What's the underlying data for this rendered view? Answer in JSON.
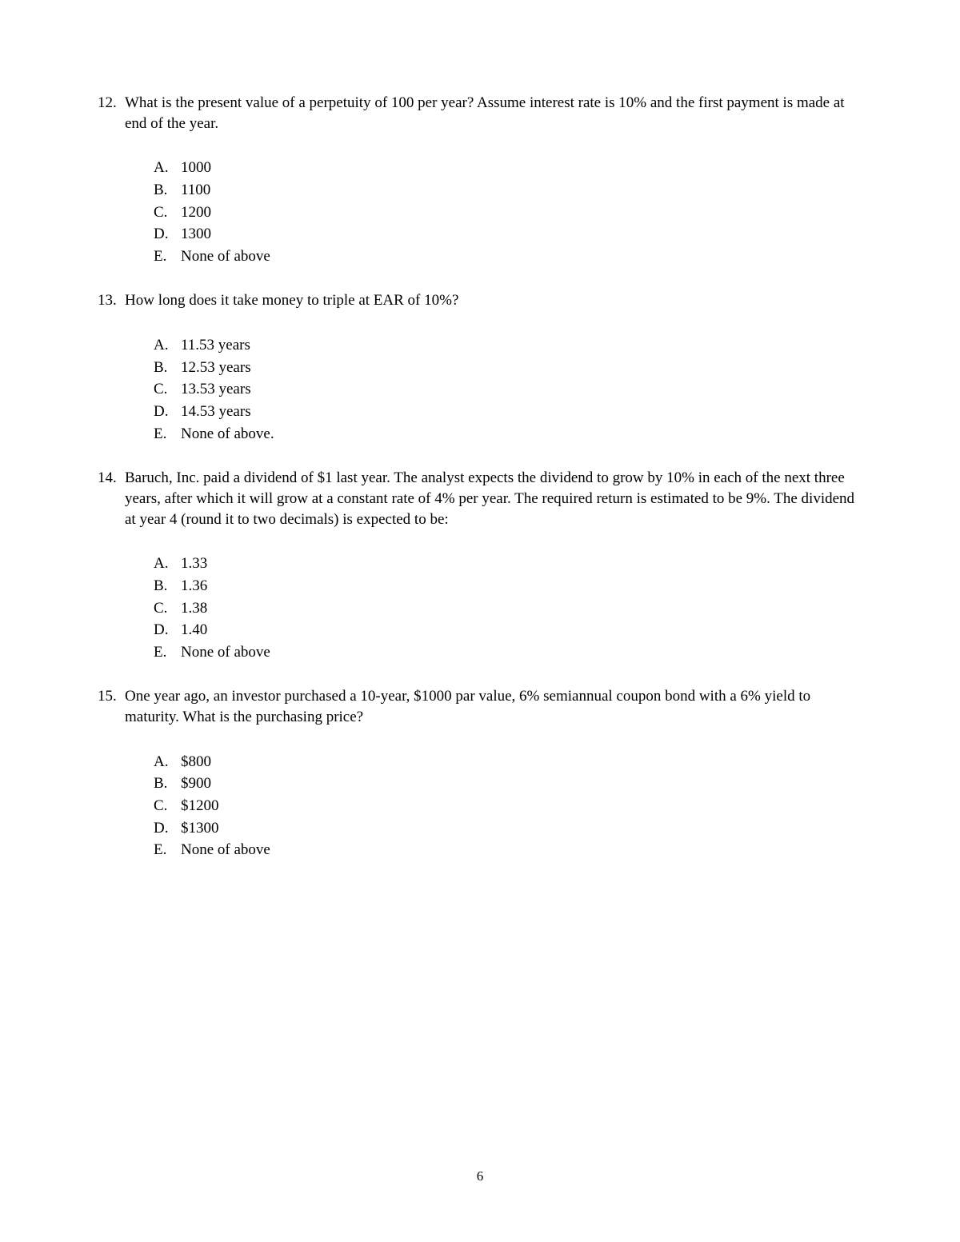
{
  "page_number": "6",
  "questions": [
    {
      "number": "12.",
      "text": "What is the present value of a perpetuity of 100 per year? Assume interest rate is 10% and the first payment is made at end of the year.",
      "options": [
        {
          "letter": "A.",
          "text": "1000"
        },
        {
          "letter": "B.",
          "text": "1100"
        },
        {
          "letter": "C.",
          "text": "1200"
        },
        {
          "letter": "D.",
          "text": "1300"
        },
        {
          "letter": "E.",
          "text": "None of above"
        }
      ]
    },
    {
      "number": "13.",
      "text": "How long does it take money to triple at EAR of 10%?",
      "options": [
        {
          "letter": "A.",
          "text": "11.53 years"
        },
        {
          "letter": "B.",
          "text": "12.53 years"
        },
        {
          "letter": "C.",
          "text": "13.53 years"
        },
        {
          "letter": "D.",
          "text": "14.53 years"
        },
        {
          "letter": "E.",
          "text": "None of above."
        }
      ]
    },
    {
      "number": "14.",
      "text": "Baruch, Inc. paid a dividend of $1 last year. The analyst expects the dividend to grow by 10% in each of the next three years, after which it will grow at a constant rate of 4% per year. The required return is estimated to be 9%. The dividend at year 4 (round it to two decimals) is expected to be:",
      "options": [
        {
          "letter": "A.",
          "text": "1.33"
        },
        {
          "letter": "B.",
          "text": "1.36"
        },
        {
          "letter": "C.",
          "text": "1.38"
        },
        {
          "letter": "D.",
          "text": "1.40"
        },
        {
          "letter": "E.",
          "text": "None of above"
        }
      ]
    },
    {
      "number": "15.",
      "text": "One year ago, an investor purchased a 10-year, $1000 par value, 6% semiannual coupon bond with a 6% yield to maturity. What is the purchasing price?",
      "options": [
        {
          "letter": "A.",
          "text": "$800"
        },
        {
          "letter": "B.",
          "text": "$900"
        },
        {
          "letter": "C.",
          "text": "$1200"
        },
        {
          "letter": "D.",
          "text": "$1300"
        },
        {
          "letter": "E.",
          "text": "None of above"
        }
      ]
    }
  ]
}
